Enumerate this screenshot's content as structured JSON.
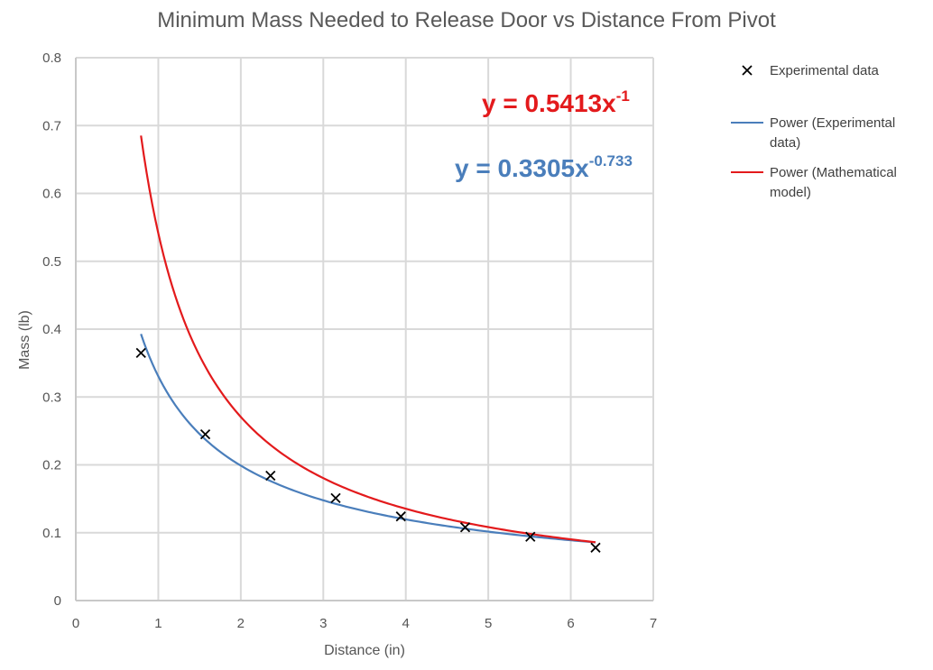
{
  "chart_data": {
    "type": "scatter",
    "title": "Minimum Mass Needed to Release Door vs Distance From Pivot",
    "xlabel": "Distance (in)",
    "ylabel": "Mass (lb)",
    "xlim": [
      0,
      7
    ],
    "ylim": [
      0,
      0.8
    ],
    "x_ticks": [
      "0",
      "1",
      "2",
      "3",
      "4",
      "5",
      "6",
      "7"
    ],
    "y_ticks": [
      "0",
      "0.1",
      "0.2",
      "0.3",
      "0.4",
      "0.5",
      "0.6",
      "0.7",
      "0.8"
    ],
    "grid": true,
    "legend_position": "right",
    "series": [
      {
        "name": "Experimental data",
        "kind": "markers",
        "marker": "x",
        "color": "#000000",
        "x": [
          0.79,
          1.57,
          2.36,
          3.15,
          3.94,
          4.72,
          5.51,
          6.3
        ],
        "y": [
          0.365,
          0.245,
          0.184,
          0.151,
          0.124,
          0.108,
          0.094,
          0.078
        ]
      },
      {
        "name": "Power (Experimental data)",
        "kind": "trendline",
        "color": "#4a7ebb",
        "coefficient": 0.3305,
        "exponent": -0.733,
        "x_range": [
          0.79,
          6.3
        ]
      },
      {
        "name": "Power (Mathematical model)",
        "kind": "trendline",
        "color": "#e31a1c",
        "coefficient": 0.5413,
        "exponent": -1,
        "x_range": [
          0.79,
          6.3
        ]
      }
    ],
    "annotations": [
      {
        "prefix": "y = 0.5413x",
        "superscript": "-1",
        "color": "#e31a1c"
      },
      {
        "prefix": "y = 0.3305x",
        "superscript": "-0.733",
        "color": "#4a7ebb"
      }
    ]
  }
}
